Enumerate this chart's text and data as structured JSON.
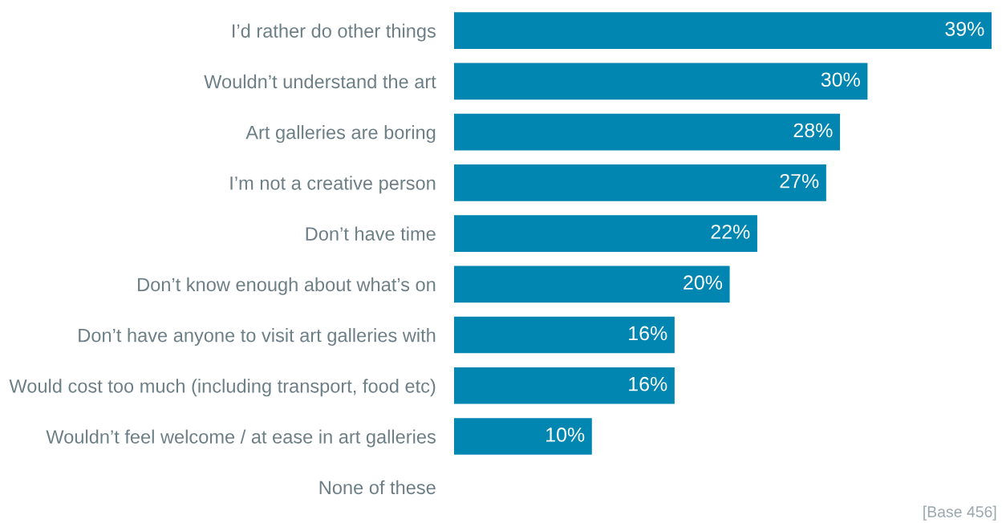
{
  "chart_data": {
    "type": "bar",
    "orientation": "horizontal",
    "categories": [
      "I’d rather do other things",
      "Wouldn’t understand the art",
      "Art galleries are boring",
      "I’m not a creative person",
      "Don’t have time",
      "Don’t know enough about what’s on",
      "Don’t have anyone to visit art galleries with",
      "Would cost too much (including transport, food etc)",
      "Wouldn’t feel welcome / at ease in art galleries",
      "None of these"
    ],
    "values": [
      39,
      30,
      28,
      27,
      22,
      20,
      16,
      16,
      10,
      null
    ],
    "color": "#0086b0",
    "value_labels": [
      "39%",
      "30%",
      "28%",
      "27%",
      "22%",
      "20%",
      "16%",
      "16%",
      "10%",
      null
    ],
    "annotations": [
      "[Base 456]"
    ],
    "tick_labels": "y"
  }
}
